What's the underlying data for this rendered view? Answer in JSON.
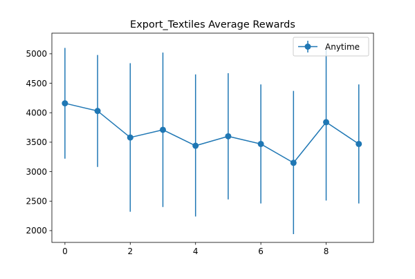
{
  "chart_data": {
    "type": "line",
    "title": "Export_Textiles Average Rewards",
    "xlabel": "",
    "ylabel": "",
    "x": [
      0,
      1,
      2,
      3,
      4,
      5,
      6,
      7,
      8,
      9
    ],
    "series": [
      {
        "name": "Anytime",
        "color": "#1f77b4",
        "values": [
          4160,
          4030,
          3580,
          3710,
          3440,
          3600,
          3470,
          3150,
          3840,
          3470
        ],
        "error_low": [
          3220,
          3080,
          2320,
          2400,
          2240,
          2530,
          2460,
          1940,
          2510,
          2460
        ],
        "error_high": [
          5100,
          4980,
          4840,
          5020,
          4650,
          4670,
          4480,
          4370,
          5080,
          4480
        ]
      }
    ],
    "xlim": [
      -0.4,
      9.45
    ],
    "ylim": [
      1800,
      5350
    ],
    "xticks": [
      0,
      2,
      4,
      6,
      8
    ],
    "yticks": [
      2000,
      2500,
      3000,
      3500,
      4000,
      4500,
      5000
    ],
    "grid": false,
    "legend_position": "top-right"
  }
}
